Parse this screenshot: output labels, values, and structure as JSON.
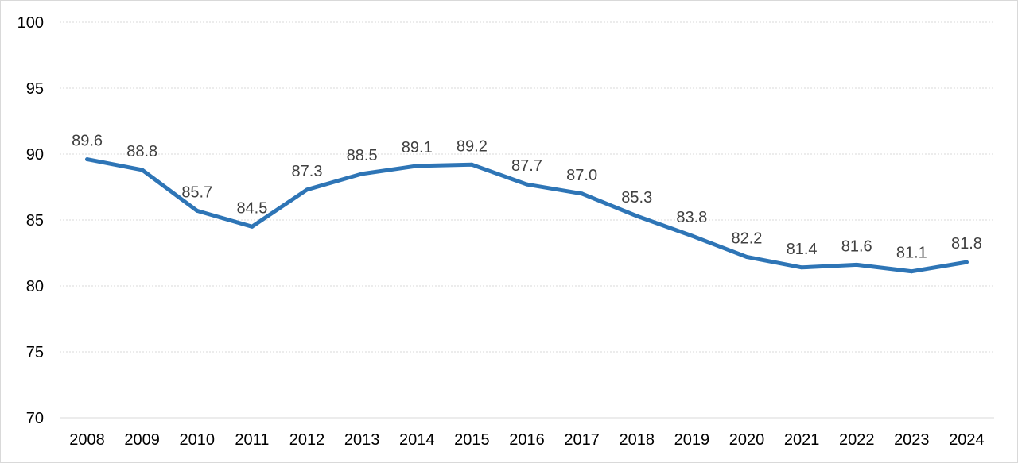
{
  "chart_data": {
    "type": "line",
    "title": "",
    "xlabel": "",
    "ylabel": "",
    "categories": [
      "2008",
      "2009",
      "2010",
      "2011",
      "2012",
      "2013",
      "2014",
      "2015",
      "2016",
      "2017",
      "2018",
      "2019",
      "2020",
      "2021",
      "2022",
      "2023",
      "2024"
    ],
    "series": [
      {
        "values": [
          89.6,
          88.8,
          85.7,
          84.5,
          87.3,
          88.5,
          89.1,
          89.2,
          87.7,
          87.0,
          85.3,
          83.8,
          82.2,
          81.4,
          81.6,
          81.1,
          81.8
        ],
        "labels": [
          "89.6",
          "88.8",
          "85.7",
          "84.5",
          "87.3",
          "88.5",
          "89.1",
          "89.2",
          "87.7",
          "87.0",
          "85.3",
          "83.8",
          "82.2",
          "81.4",
          "81.6",
          "81.1",
          "81.8"
        ],
        "color": "#2e75b6"
      }
    ],
    "ylim": [
      70,
      100
    ],
    "yticks": [
      "70",
      "75",
      "80",
      "85",
      "90",
      "95",
      "100"
    ],
    "grid": true,
    "legend": "none"
  }
}
